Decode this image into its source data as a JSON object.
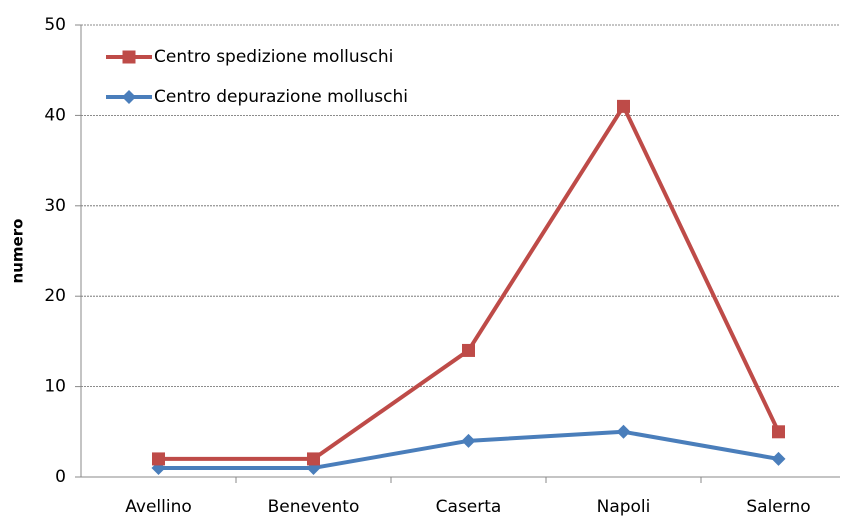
{
  "chart_data": {
    "type": "line",
    "y_label": "numero",
    "categories": [
      "Avellino",
      "Benevento",
      "Caserta",
      "Napoli",
      "Salerno"
    ],
    "series": [
      {
        "name": "Centro spedizione molluschi",
        "color": "#be4b48",
        "marker": "square",
        "values": [
          2,
          2,
          14,
          41,
          5
        ]
      },
      {
        "name": "Centro depurazione molluschi",
        "color": "#4a7ebb",
        "marker": "diamond",
        "values": [
          1,
          1,
          4,
          5,
          2
        ]
      }
    ],
    "ylim": [
      0,
      50
    ],
    "yticks": [
      0,
      10,
      20,
      30,
      40,
      50
    ],
    "grid": true,
    "legend": "upper left"
  }
}
